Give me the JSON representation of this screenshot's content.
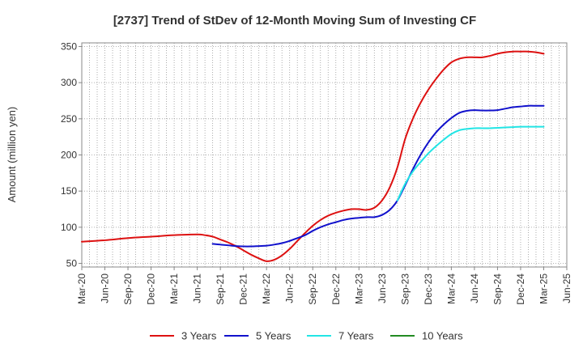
{
  "chart_data": {
    "type": "line",
    "title": "[2737]  Trend of StDev of 12-Month Moving Sum of Investing CF",
    "ylabel": "Amount (million yen)",
    "xlabel": "",
    "ylim": [
      45,
      355
    ],
    "yticks": [
      50,
      100,
      150,
      200,
      250,
      300,
      350
    ],
    "x_ticks": [
      "Mar-20",
      "Jun-20",
      "Sep-20",
      "Dec-20",
      "Mar-21",
      "Jun-21",
      "Sep-21",
      "Dec-21",
      "Mar-22",
      "Jun-22",
      "Sep-22",
      "Dec-22",
      "Mar-23",
      "Jun-23",
      "Sep-23",
      "Dec-23",
      "Mar-24",
      "Jun-24",
      "Sep-24",
      "Dec-24",
      "Mar-25",
      "Jun-25"
    ],
    "grid": true,
    "legend_position": "bottom",
    "series": [
      {
        "name": "3 Years",
        "color": "#dd1111",
        "points": [
          [
            "Mar-20",
            80
          ],
          [
            "Jun-20",
            82
          ],
          [
            "Sep-20",
            85
          ],
          [
            "Dec-20",
            87
          ],
          [
            "Mar-21",
            89
          ],
          [
            "Jun-21",
            90
          ],
          [
            "Jul-21",
            89
          ],
          [
            "Aug-21",
            87
          ],
          [
            "Sep-21",
            83
          ],
          [
            "Oct-21",
            79
          ],
          [
            "Nov-21",
            74
          ],
          [
            "Dec-21",
            68
          ],
          [
            "Jan-22",
            62
          ],
          [
            "Feb-22",
            57
          ],
          [
            "Mar-22",
            53
          ],
          [
            "Apr-22",
            55
          ],
          [
            "May-22",
            61
          ],
          [
            "Jun-22",
            70
          ],
          [
            "Jul-22",
            81
          ],
          [
            "Aug-22",
            92
          ],
          [
            "Sep-22",
            102
          ],
          [
            "Oct-22",
            110
          ],
          [
            "Nov-22",
            116
          ],
          [
            "Dec-22",
            120
          ],
          [
            "Jan-23",
            123
          ],
          [
            "Feb-23",
            125
          ],
          [
            "Mar-23",
            125
          ],
          [
            "Apr-23",
            124
          ],
          [
            "May-23",
            127
          ],
          [
            "Jun-23",
            137
          ],
          [
            "Jul-23",
            155
          ],
          [
            "Aug-23",
            183
          ],
          [
            "Sep-23",
            222
          ],
          [
            "Oct-23",
            250
          ],
          [
            "Nov-23",
            272
          ],
          [
            "Dec-23",
            290
          ],
          [
            "Jan-24",
            305
          ],
          [
            "Feb-24",
            318
          ],
          [
            "Mar-24",
            328
          ],
          [
            "Apr-24",
            333
          ],
          [
            "May-24",
            335
          ],
          [
            "Jun-24",
            335
          ],
          [
            "Jul-24",
            335
          ],
          [
            "Aug-24",
            337
          ],
          [
            "Sep-24",
            340
          ],
          [
            "Oct-24",
            342
          ],
          [
            "Nov-24",
            343
          ],
          [
            "Dec-24",
            343
          ],
          [
            "Jan-25",
            343
          ],
          [
            "Feb-25",
            342
          ],
          [
            "Mar-25",
            340
          ]
        ]
      },
      {
        "name": "5 Years",
        "color": "#1111cc",
        "points": [
          [
            "Aug-21",
            77
          ],
          [
            "Sep-21",
            76
          ],
          [
            "Oct-21",
            75
          ],
          [
            "Nov-21",
            74
          ],
          [
            "Dec-21",
            73.5
          ],
          [
            "Jan-22",
            73.5
          ],
          [
            "Feb-22",
            74
          ],
          [
            "Mar-22",
            74.5
          ],
          [
            "Apr-22",
            76
          ],
          [
            "May-22",
            78
          ],
          [
            "Jun-22",
            81
          ],
          [
            "Jul-22",
            85
          ],
          [
            "Aug-22",
            89
          ],
          [
            "Sep-22",
            95
          ],
          [
            "Oct-22",
            100
          ],
          [
            "Nov-22",
            104
          ],
          [
            "Dec-22",
            107
          ],
          [
            "Jan-23",
            110
          ],
          [
            "Feb-23",
            112
          ],
          [
            "Mar-23",
            113
          ],
          [
            "Apr-23",
            114
          ],
          [
            "May-23",
            114
          ],
          [
            "Jun-23",
            117
          ],
          [
            "Jul-23",
            124
          ],
          [
            "Aug-23",
            137
          ],
          [
            "Sep-23",
            158
          ],
          [
            "Oct-23",
            180
          ],
          [
            "Nov-23",
            200
          ],
          [
            "Dec-23",
            217
          ],
          [
            "Jan-24",
            231
          ],
          [
            "Feb-24",
            242
          ],
          [
            "Mar-24",
            251
          ],
          [
            "Apr-24",
            258
          ],
          [
            "May-24",
            261
          ],
          [
            "Jun-24",
            262
          ],
          [
            "Jul-24",
            261.5
          ],
          [
            "Aug-24",
            261.5
          ],
          [
            "Sep-24",
            262
          ],
          [
            "Oct-24",
            264
          ],
          [
            "Nov-24",
            266
          ],
          [
            "Dec-24",
            267
          ],
          [
            "Jan-25",
            268
          ],
          [
            "Feb-25",
            268
          ],
          [
            "Mar-25",
            268
          ]
        ]
      },
      {
        "name": "7 Years",
        "color": "#22e5e5",
        "points": [
          [
            "Aug-23",
            137
          ],
          [
            "Sep-23",
            160
          ],
          [
            "Oct-23",
            177
          ],
          [
            "Nov-23",
            190
          ],
          [
            "Dec-23",
            202
          ],
          [
            "Jan-24",
            212
          ],
          [
            "Feb-24",
            221
          ],
          [
            "Mar-24",
            229
          ],
          [
            "Apr-24",
            234
          ],
          [
            "May-24",
            236
          ],
          [
            "Jun-24",
            237
          ],
          [
            "Jul-24",
            237
          ],
          [
            "Aug-24",
            237
          ],
          [
            "Sep-24",
            237.5
          ],
          [
            "Oct-24",
            238
          ],
          [
            "Nov-24",
            238.5
          ],
          [
            "Dec-24",
            239
          ],
          [
            "Jan-25",
            239
          ],
          [
            "Feb-25",
            239
          ],
          [
            "Mar-25",
            239
          ]
        ]
      },
      {
        "name": "10 Years",
        "color": "#228b22",
        "points": []
      }
    ]
  }
}
